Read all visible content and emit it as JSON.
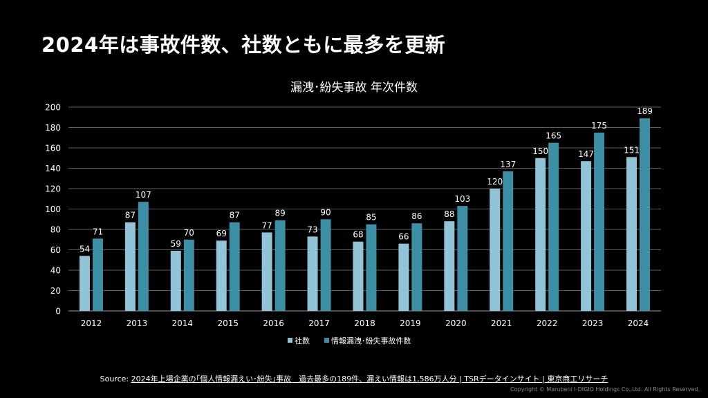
{
  "slide": {
    "title": "2024年は事故件数、社数ともに最多を更新",
    "source_prefix": "Source:",
    "source_link": "2024年上場企業の｢個人情報漏えい･紛失｣事故　過去最多の189件、漏えい情報は1,586万人分 | TSRデータインサイト | 東京商工リサーチ",
    "copyright": "Copyright © Marubeni I-DIGIO Holdings Co.,Ltd. All Rights Reserved."
  },
  "chart_data": {
    "type": "bar",
    "title": "漏洩･紛失事故 年次件数",
    "categories": [
      "2012",
      "2013",
      "2014",
      "2015",
      "2016",
      "2017",
      "2018",
      "2019",
      "2020",
      "2021",
      "2022",
      "2023",
      "2024"
    ],
    "series": [
      {
        "name": "社数",
        "color": "#92c4d7",
        "values": [
          54,
          87,
          59,
          69,
          77,
          73,
          68,
          66,
          88,
          120,
          150,
          147,
          151
        ]
      },
      {
        "name": "情報漏洩･紛失事故件数",
        "color": "#3d8fa6",
        "values": [
          71,
          107,
          70,
          87,
          89,
          90,
          85,
          86,
          103,
          137,
          165,
          175,
          189
        ]
      }
    ],
    "ylim": [
      0,
      200
    ],
    "yticks": [
      0,
      20,
      40,
      60,
      80,
      100,
      120,
      140,
      160,
      180,
      200
    ],
    "grid": true,
    "legend_position": "bottom",
    "data_labels": true
  }
}
